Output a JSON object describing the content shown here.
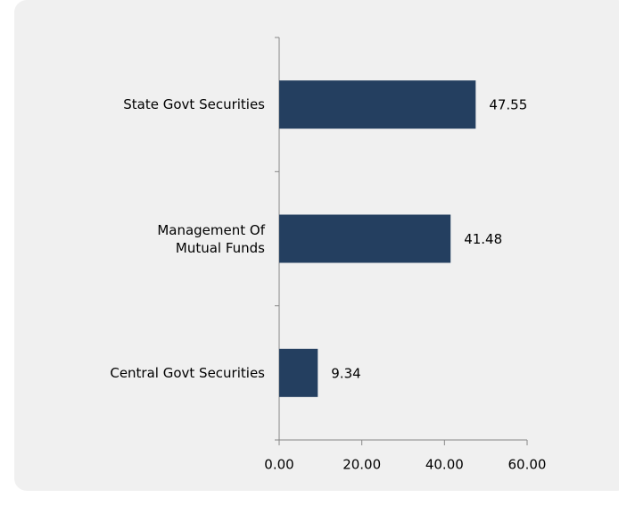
{
  "chart_data": {
    "type": "bar",
    "orientation": "horizontal",
    "categories": [
      "State Govt Securities",
      "Management Of\nMutual Funds",
      "Central Govt Securities"
    ],
    "values": [
      47.55,
      41.48,
      9.34
    ],
    "color": "#243f60",
    "xlim": [
      0,
      60
    ],
    "xticks": [
      {
        "value": 0,
        "label": "0.00"
      },
      {
        "value": 20,
        "label": "20.00"
      },
      {
        "value": 40,
        "label": "40.00"
      },
      {
        "value": 60,
        "label": "60.00"
      }
    ]
  }
}
